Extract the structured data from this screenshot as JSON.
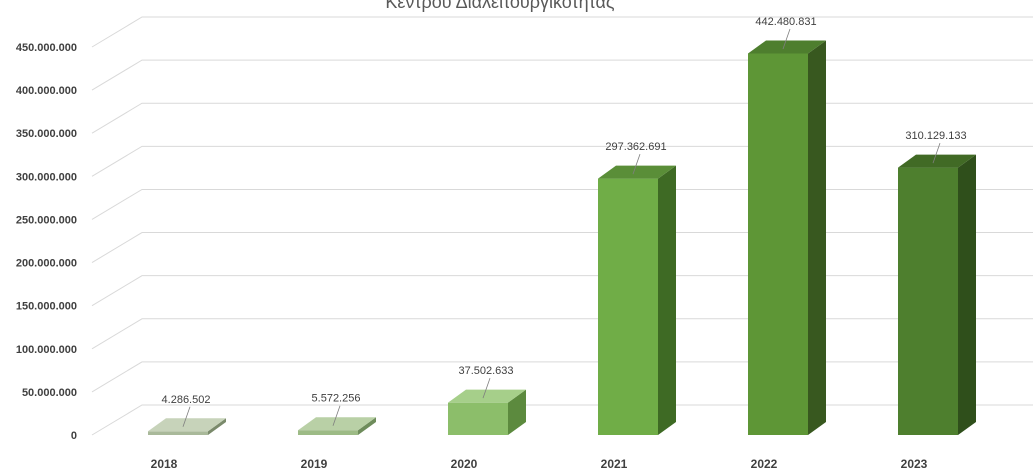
{
  "chart_data": {
    "type": "bar",
    "title": "Κέντρου Διαλειτουργικότητας",
    "categories": [
      "2018",
      "2019",
      "2020",
      "2021",
      "2022",
      "2023"
    ],
    "values": [
      4286502,
      5572256,
      37502633,
      297362691,
      442480831,
      310129133
    ],
    "data_labels": [
      "4.286.502",
      "5.572.256",
      "37.502.633",
      "297.362.691",
      "442.480.831",
      "310.129.133"
    ],
    "y_ticks": [
      "0",
      "50.000.000",
      "100.000.000",
      "150.000.000",
      "200.000.000",
      "250.000.000",
      "300.000.000",
      "350.000.000",
      "400.000.000",
      "450.000.000"
    ],
    "ylim": [
      0,
      450000000
    ],
    "grid": true,
    "legend": "none",
    "colors": {
      "front": [
        "#a9b99a",
        "#9dbb86",
        "#8cbe6a",
        "#70ad47",
        "#5e9636",
        "#4e7f2e"
      ],
      "side": [
        "#7a8a6b",
        "#6e8c5b",
        "#5c8a3e",
        "#3e6a24",
        "#38581f",
        "#2f4f1b"
      ],
      "top": [
        "#c7d3ba",
        "#b9d0a6",
        "#a6cf8a",
        "#5a8e38",
        "#4e7e2e",
        "#416a25"
      ],
      "grid": "#d9d9d9",
      "text": "#404040"
    }
  }
}
